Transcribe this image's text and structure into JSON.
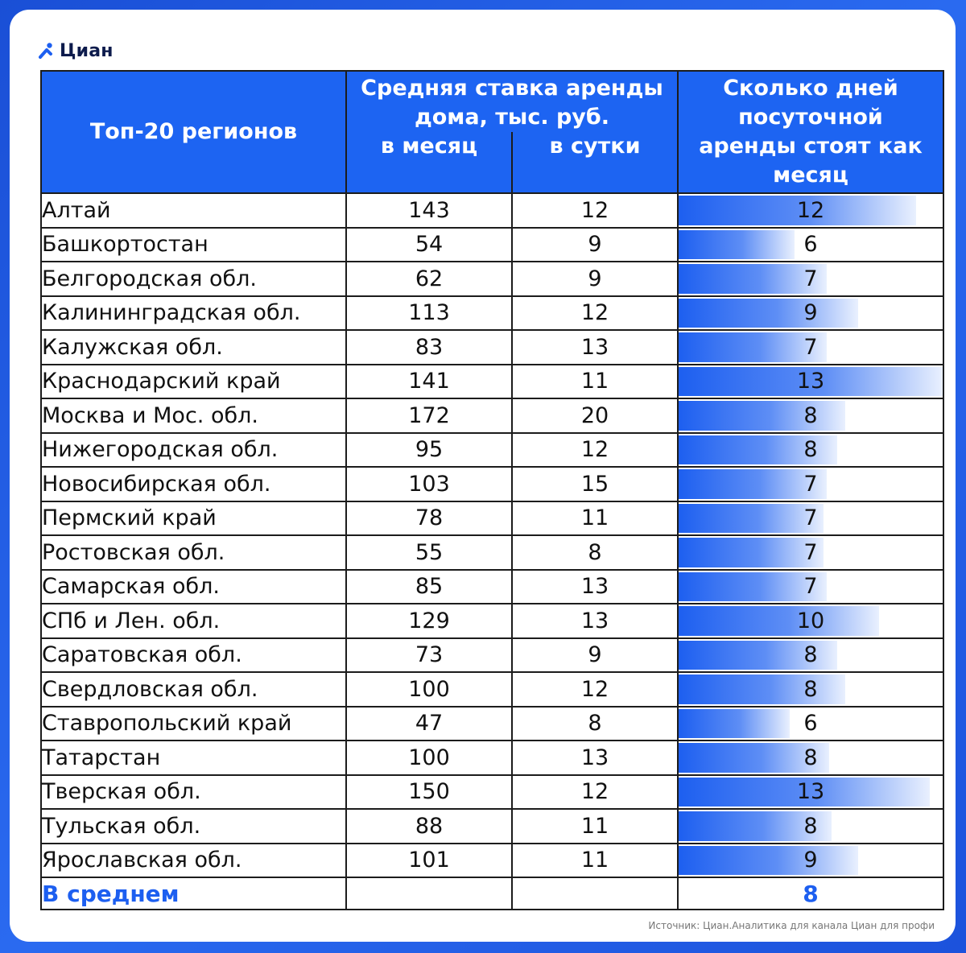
{
  "brand": {
    "name": "Циан",
    "logo_icon": "cian-logo-icon",
    "accent": "#1d5ff0"
  },
  "source": "Источник: Циан.Аналитика для канала Циан для профи",
  "chart_data": {
    "type": "table",
    "headers": {
      "region": "Топ-20 регионов",
      "rate_group": "Средняя ставка аренды дома, тыс. руб.",
      "month": "в месяц",
      "day": "в сутки",
      "days": "Сколько дней посуточной аренды стоят как месяц"
    },
    "rows": [
      {
        "region": "Алтай",
        "month": 143,
        "day": 12,
        "days": 12
      },
      {
        "region": "Башкортостан",
        "month": 54,
        "day": 9,
        "days": 6
      },
      {
        "region": "Белгородская обл.",
        "month": 62,
        "day": 9,
        "days": 7
      },
      {
        "region": "Калининградская обл.",
        "month": 113,
        "day": 12,
        "days": 9
      },
      {
        "region": "Калужская обл.",
        "month": 83,
        "day": 13,
        "days": 7
      },
      {
        "region": "Краснодарский край",
        "month": 141,
        "day": 11,
        "days": 13
      },
      {
        "region": "Москва и Мос. обл.",
        "month": 172,
        "day": 20,
        "days": 8
      },
      {
        "region": "Нижегородская обл.",
        "month": 95,
        "day": 12,
        "days": 8
      },
      {
        "region": "Новосибирская обл.",
        "month": 103,
        "day": 15,
        "days": 7
      },
      {
        "region": "Пермский край",
        "month": 78,
        "day": 11,
        "days": 7
      },
      {
        "region": "Ростовская обл.",
        "month": 55,
        "day": 8,
        "days": 7
      },
      {
        "region": "Самарская обл.",
        "month": 85,
        "day": 13,
        "days": 7
      },
      {
        "region": "СПб и Лен. обл.",
        "month": 129,
        "day": 13,
        "days": 10
      },
      {
        "region": "Саратовская обл.",
        "month": 73,
        "day": 9,
        "days": 8
      },
      {
        "region": "Свердловская обл.",
        "month": 100,
        "day": 12,
        "days": 8
      },
      {
        "region": "Ставропольский край",
        "month": 47,
        "day": 8,
        "days": 6
      },
      {
        "region": "Татарстан",
        "month": 100,
        "day": 13,
        "days": 8
      },
      {
        "region": "Тверская обл.",
        "month": 150,
        "day": 12,
        "days": 13
      },
      {
        "region": "Тульская обл.",
        "month": 88,
        "day": 11,
        "days": 8
      },
      {
        "region": "Ярославская обл.",
        "month": 101,
        "day": 11,
        "days": 9
      }
    ],
    "average": {
      "label": "В среднем",
      "days": 8
    },
    "bar_fraction": [
      0.9,
      0.44,
      0.56,
      0.68,
      0.56,
      1.0,
      0.63,
      0.6,
      0.56,
      0.55,
      0.55,
      0.56,
      0.76,
      0.6,
      0.63,
      0.42,
      0.57,
      0.95,
      0.58,
      0.68
    ],
    "bar_color": "#1d5ff0"
  }
}
